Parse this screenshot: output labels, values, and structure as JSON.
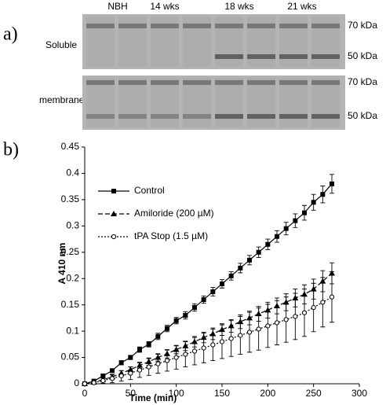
{
  "figure": {
    "panel_a": {
      "label": "a)",
      "columns": [
        "NBH",
        "14 wks",
        "18 wks",
        "21 wks"
      ],
      "rows": [
        {
          "name": "Soluble",
          "markers": [
            "70 kDa",
            "50 kDa"
          ]
        },
        {
          "name": "membrane",
          "markers": [
            "70 kDa",
            "50 kDa"
          ]
        }
      ]
    },
    "panel_b_label": "b)"
  },
  "chart_data": {
    "type": "line",
    "x_label": "Time (min)",
    "y_label": "A 410 nm",
    "x": [
      0,
      10,
      20,
      30,
      40,
      50,
      60,
      70,
      80,
      90,
      100,
      110,
      120,
      130,
      140,
      150,
      160,
      170,
      180,
      190,
      200,
      210,
      220,
      230,
      240,
      250,
      260,
      270
    ],
    "series": [
      {
        "name": "Control",
        "color": "#000000",
        "dash": "solid",
        "marker": "square",
        "values": [
          0,
          0.005,
          0.015,
          0.025,
          0.04,
          0.05,
          0.065,
          0.075,
          0.09,
          0.105,
          0.12,
          0.13,
          0.145,
          0.16,
          0.175,
          0.19,
          0.205,
          0.22,
          0.235,
          0.25,
          0.265,
          0.28,
          0.295,
          0.31,
          0.325,
          0.345,
          0.36,
          0.38
        ],
        "errors": [
          0,
          0.002,
          0.003,
          0.003,
          0.004,
          0.004,
          0.005,
          0.005,
          0.006,
          0.006,
          0.006,
          0.007,
          0.007,
          0.007,
          0.008,
          0.008,
          0.008,
          0.009,
          0.009,
          0.01,
          0.01,
          0.011,
          0.012,
          0.013,
          0.014,
          0.015,
          0.016,
          0.018
        ]
      },
      {
        "name": "Amiloride (200 µM)",
        "color": "#000000",
        "dash": "dashed",
        "marker": "triangle",
        "values": [
          0,
          0.003,
          0.008,
          0.013,
          0.02,
          0.027,
          0.035,
          0.042,
          0.05,
          0.057,
          0.065,
          0.072,
          0.08,
          0.088,
          0.095,
          0.103,
          0.11,
          0.118,
          0.125,
          0.133,
          0.14,
          0.148,
          0.155,
          0.163,
          0.17,
          0.18,
          0.195,
          0.21
        ],
        "errors": [
          0,
          0.002,
          0.003,
          0.004,
          0.005,
          0.005,
          0.006,
          0.007,
          0.007,
          0.008,
          0.008,
          0.009,
          0.01,
          0.01,
          0.011,
          0.011,
          0.012,
          0.013,
          0.013,
          0.014,
          0.015,
          0.015,
          0.016,
          0.017,
          0.018,
          0.019,
          0.02,
          0.02
        ]
      },
      {
        "name": "tPA Stop (1.5 µM)",
        "color": "#000000",
        "dash": "dotted",
        "marker": "open-circle",
        "values": [
          0,
          0.002,
          0.006,
          0.01,
          0.015,
          0.02,
          0.026,
          0.032,
          0.038,
          0.044,
          0.05,
          0.056,
          0.062,
          0.068,
          0.074,
          0.08,
          0.086,
          0.092,
          0.098,
          0.104,
          0.11,
          0.116,
          0.122,
          0.128,
          0.135,
          0.145,
          0.155,
          0.165
        ],
        "errors": [
          0,
          0.003,
          0.005,
          0.008,
          0.01,
          0.012,
          0.014,
          0.016,
          0.018,
          0.02,
          0.022,
          0.024,
          0.026,
          0.028,
          0.03,
          0.032,
          0.034,
          0.036,
          0.038,
          0.04,
          0.041,
          0.042,
          0.043,
          0.044,
          0.045,
          0.046,
          0.047,
          0.048
        ]
      }
    ],
    "xlim": [
      0,
      300
    ],
    "xticks": [
      0,
      50,
      100,
      150,
      200,
      250,
      300
    ],
    "ylim": [
      0,
      0.45
    ],
    "yticks": [
      0,
      0.05,
      0.1,
      0.15,
      0.2,
      0.25,
      0.3,
      0.35,
      0.4,
      0.45
    ],
    "legend": "upper-left",
    "grid": false
  }
}
